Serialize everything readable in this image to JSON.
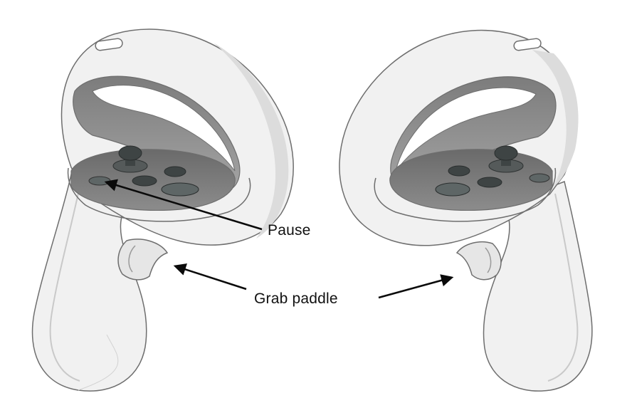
{
  "labels": {
    "pause": "Pause",
    "grab_paddle": "Grab paddle"
  },
  "controllers": [
    {
      "side": "left",
      "icon": "left-controller-icon"
    },
    {
      "side": "right",
      "icon": "right-controller-icon"
    }
  ],
  "colors": {
    "shell": "#f1f1f1",
    "shell_shade": "#d6d6d6",
    "outline": "#6e6e6e",
    "ring_inner": "#8f8f8f",
    "face": "#7a7a7a",
    "button": "#3e4444",
    "button_light": "#5e6666",
    "arrow": "#0a0a0a"
  }
}
